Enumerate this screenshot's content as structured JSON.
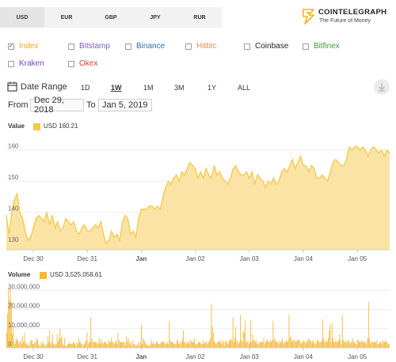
{
  "currencies": [
    {
      "label": "USD",
      "active": true
    },
    {
      "label": "EUR",
      "active": false
    },
    {
      "label": "GBP",
      "active": false
    },
    {
      "label": "JPY",
      "active": false
    },
    {
      "label": "RUR",
      "active": false
    }
  ],
  "brand": {
    "name": "COINTELEGRAPH",
    "tagline": "The Future of Money",
    "color": "#f6b21c"
  },
  "exchanges": [
    {
      "label": "Index",
      "checked": true,
      "color": "#f0a91c"
    },
    {
      "label": "Bitstamp",
      "checked": false,
      "color": "#7a5ac8"
    },
    {
      "label": "Binance",
      "checked": false,
      "color": "#2f6fa8"
    },
    {
      "label": "Hitbtc",
      "checked": false,
      "color": "#f28a4a"
    },
    {
      "label": "Coinbase",
      "checked": false,
      "color": "#222222"
    },
    {
      "label": "Bitfinex",
      "checked": false,
      "color": "#3a9a3a"
    },
    {
      "label": "Kraken",
      "checked": false,
      "color": "#7a3fc0"
    },
    {
      "label": "Okex",
      "checked": false,
      "color": "#e03a3a"
    }
  ],
  "date_range": {
    "label": "Date Range",
    "buttons": [
      {
        "label": "1D",
        "active": false
      },
      {
        "label": "1W",
        "active": true
      },
      {
        "label": "1M",
        "active": false
      },
      {
        "label": "3M",
        "active": false
      },
      {
        "label": "1Y",
        "active": false
      },
      {
        "label": "ALL",
        "active": false
      }
    ],
    "from_label": "From",
    "from_value": "Dec 29, 2018",
    "to_label": "To",
    "to_value": "Jan 5, 2019"
  },
  "icons": {
    "calendar": "calendar-icon",
    "download": "download-icon"
  },
  "chart_data": [
    {
      "type": "area",
      "title": "Value",
      "legend": "USD 160.21",
      "color": "#f7c948",
      "fill": "#fbe3a5",
      "ylim": [
        128,
        165
      ],
      "yticks": [
        130,
        140,
        150,
        160
      ],
      "xlim": [
        0,
        7.1
      ],
      "xticks": [
        {
          "pos": 0.5,
          "label": "Dec 30",
          "bold": false
        },
        {
          "pos": 1.5,
          "label": "Dec 31",
          "bold": false
        },
        {
          "pos": 2.5,
          "label": "Jan",
          "bold": true
        },
        {
          "pos": 3.5,
          "label": "Jan 02",
          "bold": false
        },
        {
          "pos": 4.5,
          "label": "Jan 03",
          "bold": false
        },
        {
          "pos": 5.5,
          "label": "Jan 04",
          "bold": false
        },
        {
          "pos": 6.5,
          "label": "Jan 05",
          "bold": false
        }
      ],
      "series": [
        {
          "x": [
            0,
            0.05,
            0.1,
            0.15,
            0.2,
            0.25,
            0.3,
            0.35,
            0.4,
            0.45,
            0.5,
            0.55,
            0.6,
            0.65,
            0.7,
            0.75,
            0.8,
            0.85,
            0.9,
            0.95,
            1.0,
            1.05,
            1.1,
            1.15,
            1.2,
            1.25,
            1.3,
            1.35,
            1.4,
            1.45,
            1.5,
            1.55,
            1.6,
            1.65,
            1.7,
            1.75,
            1.8,
            1.85,
            1.9,
            1.95,
            2.0,
            2.05,
            2.1,
            2.15,
            2.2,
            2.25,
            2.3,
            2.35,
            2.4,
            2.45,
            2.5,
            2.55,
            2.6,
            2.65,
            2.7,
            2.75,
            2.8,
            2.85,
            2.9,
            2.95,
            3.0,
            3.05,
            3.1,
            3.15,
            3.2,
            3.25,
            3.3,
            3.35,
            3.4,
            3.45,
            3.5,
            3.55,
            3.6,
            3.65,
            3.7,
            3.75,
            3.8,
            3.85,
            3.9,
            3.95,
            4.0,
            4.05,
            4.1,
            4.15,
            4.2,
            4.25,
            4.3,
            4.35,
            4.4,
            4.45,
            4.5,
            4.55,
            4.6,
            4.65,
            4.7,
            4.75,
            4.8,
            4.85,
            4.9,
            4.95,
            5.0,
            5.05,
            5.1,
            5.15,
            5.2,
            5.25,
            5.3,
            5.35,
            5.4,
            5.45,
            5.5,
            5.55,
            5.6,
            5.65,
            5.7,
            5.75,
            5.8,
            5.85,
            5.9,
            5.95,
            6.0,
            6.05,
            6.1,
            6.15,
            6.2,
            6.25,
            6.3,
            6.35,
            6.4,
            6.45,
            6.5,
            6.55,
            6.6,
            6.65,
            6.7,
            6.75,
            6.8,
            6.85,
            6.9,
            6.95,
            7.0,
            7.05,
            7.1
          ],
          "y": [
            139,
            133,
            140,
            144,
            146,
            140,
            138,
            134,
            131,
            132,
            135,
            138,
            139,
            138,
            137,
            140,
            136,
            139,
            135,
            137,
            134,
            135,
            138,
            137,
            136,
            137,
            134,
            133,
            135,
            136,
            134,
            134,
            135,
            136,
            135,
            137,
            133,
            130,
            131,
            134,
            132,
            133,
            131,
            137,
            139,
            138,
            133,
            134,
            132,
            138,
            141,
            141,
            141,
            142,
            142,
            141,
            142,
            141,
            145,
            148,
            150,
            149,
            151,
            152,
            150,
            153,
            152,
            154,
            156,
            155,
            154,
            151,
            153,
            151,
            154,
            152,
            151,
            155,
            152,
            153,
            151,
            150,
            149,
            151,
            154,
            155,
            153,
            152,
            152,
            153,
            151,
            153,
            149,
            152,
            151,
            150,
            148,
            150,
            149,
            151,
            149,
            150,
            153,
            154,
            153,
            155,
            157,
            154,
            156,
            158,
            155,
            155,
            153,
            155,
            154,
            151,
            151,
            152,
            151,
            150,
            153,
            156,
            157,
            156,
            155,
            155,
            157,
            161,
            160,
            161,
            161,
            160,
            161,
            160,
            158,
            160,
            161,
            160,
            159,
            160,
            158,
            160,
            159
          ]
        }
      ]
    },
    {
      "type": "bar",
      "title": "Volume",
      "legend": "USD 3,525,058.61",
      "color": "#f7b731",
      "ylim": [
        0,
        33000000
      ],
      "yticks": [
        {
          "v": 0,
          "label": "0"
        },
        {
          "v": 10000000,
          "label": "10,000,000"
        },
        {
          "v": 20000000,
          "label": "20,000,000"
        },
        {
          "v": 30000000,
          "label": "30,000,000"
        }
      ],
      "xlim": [
        0,
        7.1
      ],
      "xticks": [
        {
          "pos": 0.5,
          "label": "Dec 30",
          "bold": false
        },
        {
          "pos": 1.5,
          "label": "Dec 31",
          "bold": false
        },
        {
          "pos": 2.5,
          "label": "Jan",
          "bold": true
        },
        {
          "pos": 3.5,
          "label": "Jan 02",
          "bold": false
        },
        {
          "pos": 4.5,
          "label": "Jan 03",
          "bold": false
        },
        {
          "pos": 5.5,
          "label": "Jan 04",
          "bold": false
        },
        {
          "pos": 6.5,
          "label": "Jan 05",
          "bold": false
        }
      ],
      "series": [
        {
          "values": [
            8,
            18,
            31,
            25,
            31,
            24,
            7,
            11,
            3,
            2,
            5,
            4,
            4,
            2,
            3,
            4,
            2,
            6,
            3,
            8,
            3,
            2,
            2,
            1,
            1,
            3,
            4,
            4,
            2,
            2,
            3,
            3,
            5,
            4,
            2,
            1,
            1,
            3,
            2,
            3,
            1,
            2,
            1,
            2,
            6,
            3,
            9,
            2,
            3,
            7,
            2,
            1,
            2,
            2,
            7,
            3,
            5,
            10,
            5,
            6,
            2,
            1,
            5,
            1,
            1,
            2,
            2,
            3,
            2,
            2,
            2,
            3,
            3,
            2,
            1,
            3,
            2,
            5,
            3,
            3,
            2,
            2,
            1,
            2,
            3,
            4,
            8,
            2,
            3,
            3,
            16,
            5,
            3,
            3,
            3,
            3,
            3,
            2,
            3,
            5,
            2,
            4,
            3,
            2,
            3,
            3,
            3,
            2,
            2,
            4,
            3,
            3,
            5,
            3,
            3,
            2,
            3,
            4,
            2,
            8,
            4,
            3,
            3,
            3,
            3,
            3,
            3,
            1,
            6,
            3,
            5,
            3,
            2,
            3,
            1,
            4,
            2,
            2,
            1,
            1,
            2,
            3,
            1,
            3,
            12,
            2,
            5,
            4,
            3,
            2,
            1,
            2,
            1,
            1,
            2,
            4,
            2,
            3,
            2,
            2,
            3,
            3,
            2,
            2,
            2,
            3,
            3,
            3,
            3,
            3,
            2,
            2,
            3,
            2,
            14,
            4,
            3,
            3,
            3,
            2,
            2,
            2,
            4,
            4,
            2,
            2,
            3,
            3,
            5,
            9,
            3,
            3,
            2,
            3,
            3,
            2,
            4,
            3,
            4,
            3,
            3,
            5,
            2,
            2,
            2,
            3,
            3,
            3,
            2,
            2,
            4,
            2,
            3,
            3,
            3,
            2,
            3,
            4,
            5,
            23,
            11,
            8,
            3,
            3,
            2,
            3,
            3,
            3,
            4,
            3,
            2,
            4,
            3,
            1,
            4,
            3,
            3,
            2,
            4,
            4,
            5,
            4,
            16,
            3,
            5,
            11,
            3,
            4,
            2,
            3,
            17,
            4,
            3,
            9,
            8,
            14,
            3,
            3,
            4,
            2,
            3,
            14,
            3,
            7,
            4,
            4,
            3,
            4,
            2,
            3,
            2,
            3,
            3,
            3,
            3,
            5,
            2,
            3,
            4,
            4,
            3,
            3,
            4,
            3,
            4,
            14,
            4,
            5,
            3,
            3,
            3,
            2,
            4,
            3,
            3,
            5,
            2,
            3,
            3,
            4,
            3,
            4,
            17,
            5,
            6,
            3,
            4,
            4,
            3,
            4,
            3,
            4,
            4,
            4,
            3,
            2,
            3,
            3,
            4,
            3,
            2,
            4,
            3,
            5,
            4,
            4,
            3,
            3,
            4,
            2,
            3,
            2,
            4,
            4,
            3,
            3,
            3,
            4,
            15,
            5,
            3,
            3,
            4,
            3,
            5,
            9,
            12,
            3,
            13,
            5,
            3,
            3,
            4,
            3,
            3,
            4,
            7,
            4,
            2,
            17,
            4,
            3,
            3,
            4,
            3,
            3,
            4,
            2,
            3,
            3,
            5,
            3,
            3,
            2,
            2,
            4,
            4,
            3,
            3,
            3,
            4,
            3,
            3,
            3,
            2,
            3,
            5,
            24,
            5,
            2,
            3,
            3,
            3,
            3,
            3,
            3,
            4,
            2,
            2,
            3,
            3,
            2,
            4,
            3,
            3,
            4,
            3,
            3,
            2,
            2
          ]
        }
      ]
    }
  ]
}
